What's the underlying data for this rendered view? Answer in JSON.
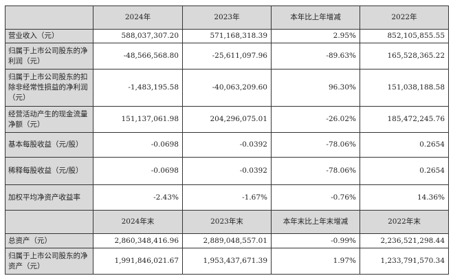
{
  "header1": [
    "",
    "2024年",
    "2023年",
    "本年比上年增减",
    "2022年"
  ],
  "rows1": [
    {
      "label": "营业收入（元）",
      "values": [
        "588,037,307.20",
        "571,168,318.39",
        "2.95%",
        "852,105,855.55"
      ]
    },
    {
      "label": "归属于上市公司股东的净利润（元）",
      "values": [
        "-48,566,568.80",
        "-25,611,097.96",
        "-89.63%",
        "165,528,365.22"
      ]
    },
    {
      "label": "归属于上市公司股东的扣除非经常性损益的净利润（元）",
      "values": [
        "-1,483,195.58",
        "-40,063,209.60",
        "96.30%",
        "151,038,188.58"
      ]
    },
    {
      "label": "经营活动产生的现金流量净额（元）",
      "values": [
        "151,137,061.98",
        "204,296,075.01",
        "-26.02%",
        "185,472,245.76"
      ]
    },
    {
      "label": "基本每股收益（元/股）",
      "values": [
        "-0.0698",
        "-0.0392",
        "-78.06%",
        "0.2654"
      ]
    },
    {
      "label": "稀释每股收益（元/股）",
      "values": [
        "-0.0698",
        "-0.0392",
        "-78.06%",
        "0.2654"
      ]
    },
    {
      "label": "加权平均净资产收益率",
      "values": [
        "-2.43%",
        "-1.67%",
        "-0.76%",
        "14.36%"
      ]
    }
  ],
  "header2": [
    "",
    "2024年末",
    "2023年末",
    "本年末比上年末增减",
    "2022年末"
  ],
  "rows2": [
    {
      "label": "总资产（元）",
      "values": [
        "2,860,348,416.96",
        "2,889,048,557.01",
        "-0.99%",
        "2,236,521,298.44"
      ]
    },
    {
      "label": "归属于上市公司股东的净资产（元）",
      "values": [
        "1,991,846,021.67",
        "1,953,437,671.39",
        "1.97%",
        "1,233,791,570.34"
      ]
    }
  ]
}
